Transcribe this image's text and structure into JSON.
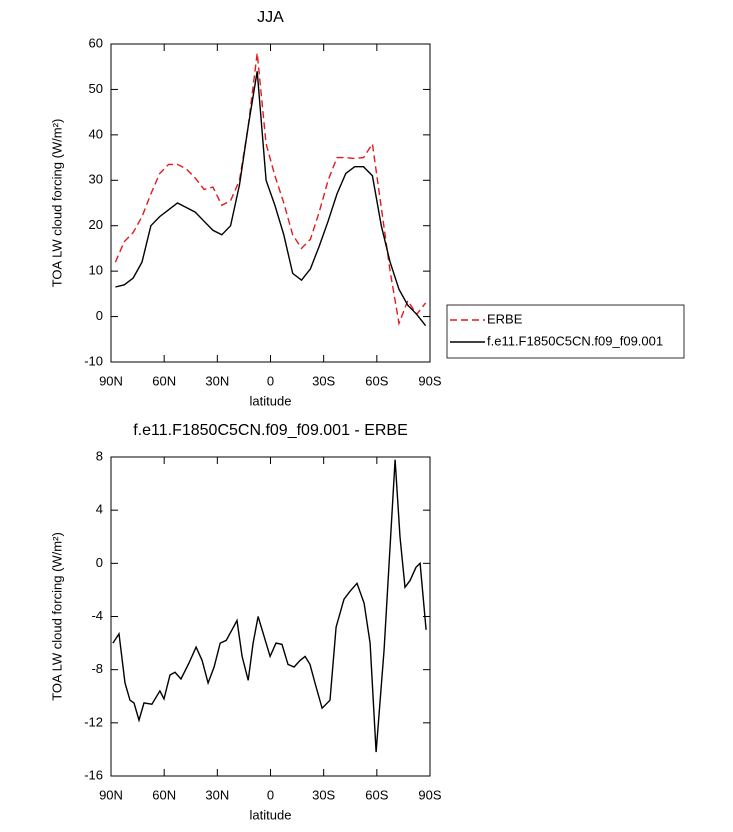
{
  "chart_data": [
    {
      "type": "line",
      "title": "JJA",
      "xlabel": "latitude",
      "ylabel": "TOA LW cloud forcing (W/m²)",
      "x": [
        87.5,
        82.5,
        77.5,
        72.5,
        67.5,
        62.5,
        57.5,
        52.5,
        47.5,
        42.5,
        37.5,
        32.5,
        27.5,
        22.5,
        17.5,
        12.5,
        7.5,
        2.5,
        -2.5,
        -7.5,
        -12.5,
        -17.5,
        -22.5,
        -27.5,
        -32.5,
        -37.5,
        -42.5,
        -47.5,
        -52.5,
        -57.5,
        -62.5,
        -67.5,
        -72.5,
        -77.5,
        -82.5,
        -87.5
      ],
      "series": [
        {
          "name": "ERBE",
          "color": "#e31a1c",
          "linestyle": "dashed",
          "values": [
            12,
            16.5,
            18.5,
            22,
            27,
            31.5,
            33.5,
            33.5,
            32.5,
            30.5,
            28,
            28.5,
            24.5,
            25.5,
            30,
            42,
            58,
            38,
            31,
            25,
            18,
            15,
            17,
            23,
            30,
            35,
            35,
            34.8,
            35,
            38,
            24,
            10,
            -1.5,
            3.5,
            0.5,
            3
          ]
        },
        {
          "name": "f.e11.F1850C5CN.f09_f09.001",
          "color": "#000000",
          "linestyle": "solid",
          "values": [
            6.5,
            7,
            8.5,
            12,
            20,
            22,
            23.5,
            25,
            24,
            23,
            21,
            19,
            18,
            20,
            29,
            42,
            54,
            30,
            24.5,
            18,
            9.5,
            8,
            10.5,
            15.5,
            21,
            27,
            31.5,
            33,
            33,
            31,
            20,
            12,
            6,
            2.5,
            0.5,
            -2
          ]
        }
      ],
      "xlim": [
        90,
        -90
      ],
      "xticks": [
        {
          "value": 90,
          "label": "90N"
        },
        {
          "value": 60,
          "label": "60N"
        },
        {
          "value": 30,
          "label": "30N"
        },
        0,
        {
          "value": -30,
          "label": "30S"
        },
        {
          "value": -60,
          "label": "60S"
        },
        {
          "value": -90,
          "label": "90S"
        }
      ],
      "ylim": [
        -10,
        60
      ],
      "yticks": [
        -10,
        0,
        10,
        20,
        30,
        40,
        50,
        60
      ],
      "legend": "right"
    },
    {
      "type": "line",
      "title": "f.e11.F1850C5CN.f09_f09.001 - ERBE",
      "xlabel": "latitude",
      "ylabel": "TOA LW cloud forcing (W/m²)",
      "x": [
        88.9,
        85.5,
        82.1,
        79.3,
        77.0,
        74.2,
        71.4,
        66.9,
        62.4,
        60.1,
        56.7,
        53.9,
        50.5,
        46.0,
        42.0,
        38.6,
        35.2,
        31.8,
        28.4,
        25.0,
        21.7,
        18.9,
        16.0,
        12.6,
        9.8,
        7.0,
        3.6,
        0.2,
        -3.1,
        -6.5,
        -9.9,
        -13.3,
        -16.7,
        -19.5,
        -22.3,
        -25.1,
        -29.1,
        -33.6,
        -37.0,
        -41.5,
        -44.9,
        -48.8,
        -52.8,
        -56.2,
        -59.6,
        -64.1,
        -70.3,
        -73.1,
        -75.9,
        -78.7,
        -82.1,
        -84.4,
        -87.8
      ],
      "series": [
        {
          "color": "#000000",
          "linestyle": "solid",
          "values": [
            -6,
            -5.3,
            -9,
            -10.3,
            -10.5,
            -11.8,
            -10.5,
            -10.6,
            -9.6,
            -10.2,
            -8.4,
            -8.2,
            -8.7,
            -7.5,
            -6.3,
            -7.3,
            -9,
            -7.8,
            -6,
            -5.8,
            -5,
            -4.3,
            -7,
            -8.8,
            -6,
            -4,
            -5.5,
            -7,
            -6,
            -6.1,
            -7.6,
            -7.8,
            -7.3,
            -7,
            -7.6,
            -9,
            -10.9,
            -10.3,
            -4.8,
            -2.7,
            -2.1,
            -1.5,
            -3,
            -6,
            -14.2,
            -6.5,
            7.8,
            2,
            -1.8,
            -1.3,
            -0.3,
            0,
            -5
          ]
        }
      ],
      "xlim": [
        90,
        -90
      ],
      "xticks": [
        {
          "value": 90,
          "label": "90N"
        },
        {
          "value": 60,
          "label": "60N"
        },
        {
          "value": 30,
          "label": "30N"
        },
        0,
        {
          "value": -30,
          "label": "30S"
        },
        {
          "value": -60,
          "label": "60S"
        },
        {
          "value": -90,
          "label": "90S"
        }
      ],
      "ylim": [
        -16,
        8
      ],
      "yticks": [
        -16,
        -12,
        -8,
        -4,
        0,
        4,
        8
      ]
    }
  ]
}
